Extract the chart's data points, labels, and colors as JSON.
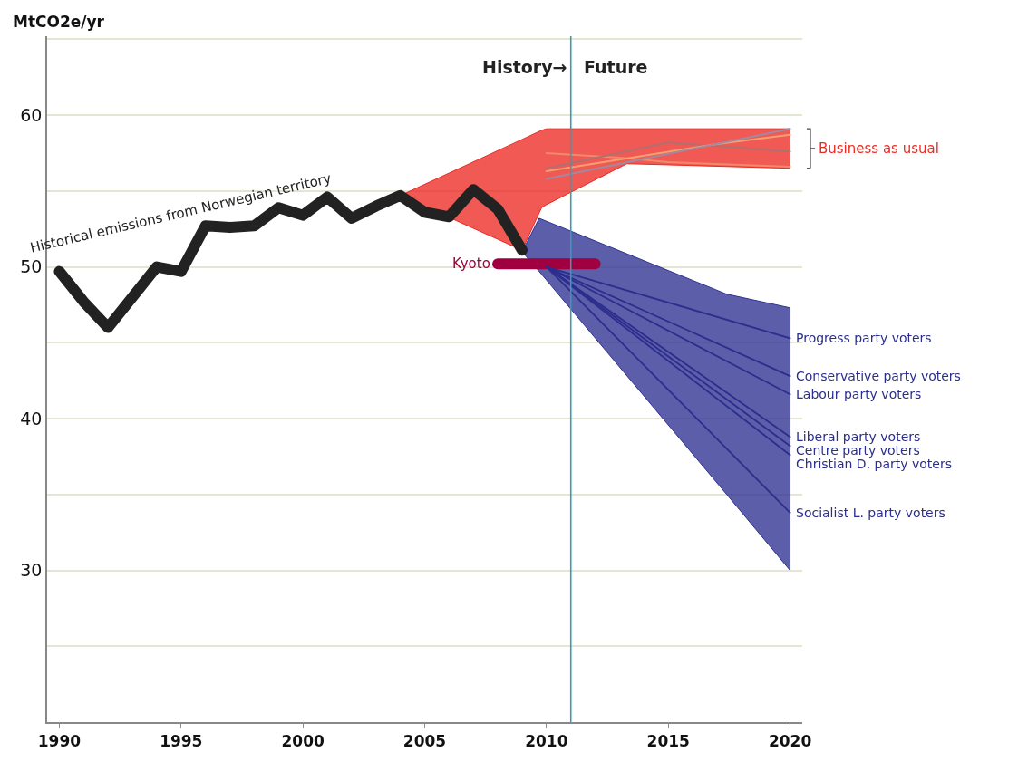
{
  "chart_data": {
    "type": "line",
    "ylabel": "MtCO2e/yr",
    "xlim": [
      1989.5,
      2020.5
    ],
    "xticks": [
      1990,
      1995,
      2000,
      2005,
      2010,
      2015,
      2020
    ],
    "ylim": [
      20,
      65.2
    ],
    "yticks": [
      {
        "value": 25,
        "label": null
      },
      30,
      {
        "value": 35,
        "label": null
      },
      40,
      {
        "value": 45,
        "label": null
      },
      50,
      {
        "value": 55,
        "label": null
      },
      60,
      {
        "value": 65,
        "label": null
      }
    ],
    "grid": "y",
    "ref_lines": [
      {
        "axis": "x",
        "value": 2011,
        "color": "#3a9ab0"
      }
    ],
    "annotations": [
      {
        "text": "History→",
        "x": 2011,
        "y": 63.2
      },
      {
        "text": "Future",
        "x": 2011,
        "y": 63.2
      }
    ],
    "series": [
      {
        "name": "Business as usual",
        "color": "#ec2a24",
        "x": [
          2004,
          2009,
          2009.8,
          2010,
          2013.3,
          2020
        ],
        "values": [
          null,
          null,
          null,
          null,
          null,
          null
        ],
        "upper": [
          54.7,
          58.4,
          59.0,
          59.1,
          59.1,
          59.1
        ],
        "lower": [
          54.7,
          51.1,
          53.9,
          54.1,
          56.8,
          56.5
        ]
      },
      {
        "color": "#2e3192",
        "x": [
          2009,
          2009.7,
          2017.4,
          2020
        ],
        "values": [
          null,
          null,
          null,
          null
        ],
        "upper": [
          51.0,
          53.2,
          48.2,
          47.3
        ],
        "lower": [
          51.0,
          49.7,
          35.0,
          30.0
        ]
      },
      {
        "color": "#f08a6a",
        "x": [
          2010,
          2013,
          2015,
          2020
        ],
        "values": [
          57.5,
          57.2,
          56.9,
          56.6
        ]
      },
      {
        "color": "#b07070",
        "x": [
          2010,
          2015,
          2020
        ],
        "values": [
          56.5,
          58.2,
          57.6
        ]
      },
      {
        "color": "#f4a070",
        "x": [
          2010,
          2017,
          2020
        ],
        "values": [
          56.3,
          58.1,
          58.7
        ]
      },
      {
        "color": "#a08aa0",
        "x": [
          2010,
          2020
        ],
        "values": [
          55.8,
          59.1
        ]
      },
      {
        "name": "Historical emissions from Norwegian territory",
        "color": "#222222",
        "x": [
          1990,
          1991,
          1992,
          1993,
          1994,
          1995,
          1996,
          1997,
          1998,
          1999,
          2000,
          2001,
          2002,
          2003,
          2004,
          2005,
          2006,
          2007,
          2008,
          2009
        ],
        "values": [
          49.7,
          47.7,
          46.0,
          48.0,
          50.0,
          49.7,
          52.7,
          52.6,
          52.7,
          53.9,
          53.4,
          54.6,
          53.2,
          54.0,
          54.7,
          53.6,
          53.3,
          55.1,
          53.8,
          51.1
        ]
      },
      {
        "name": "Kyoto",
        "color": "#a0003f",
        "x": [
          2008,
          2012
        ],
        "values": [
          50.2,
          50.2
        ]
      },
      {
        "name": "Progress party voters",
        "color": "#2b2e8c",
        "x": [
          2010,
          2020
        ],
        "values": [
          50.0,
          45.3
        ]
      },
      {
        "name": "Conservative party voters",
        "color": "#2b2e8c",
        "x": [
          2010,
          2020
        ],
        "values": [
          50.0,
          42.8
        ]
      },
      {
        "name": "Labour party voters",
        "color": "#2b2e8c",
        "x": [
          2010,
          2020
        ],
        "values": [
          50.0,
          41.6
        ]
      },
      {
        "name": "Liberal party voters",
        "color": "#2b2e8c",
        "x": [
          2010,
          2020
        ],
        "values": [
          50.0,
          38.8
        ]
      },
      {
        "name": "Centre party voters",
        "color": "#2b2e8c",
        "x": [
          2010,
          2020
        ],
        "values": [
          50.0,
          38.2
        ]
      },
      {
        "name": "Christian D. party voters",
        "color": "#2b2e8c",
        "x": [
          2010,
          2020
        ],
        "values": [
          50.0,
          37.6
        ]
      },
      {
        "name": "Socialist L. party voters",
        "color": "#2b2e8c",
        "x": [
          2010,
          2020
        ],
        "values": [
          50.0,
          33.8
        ]
      }
    ]
  }
}
